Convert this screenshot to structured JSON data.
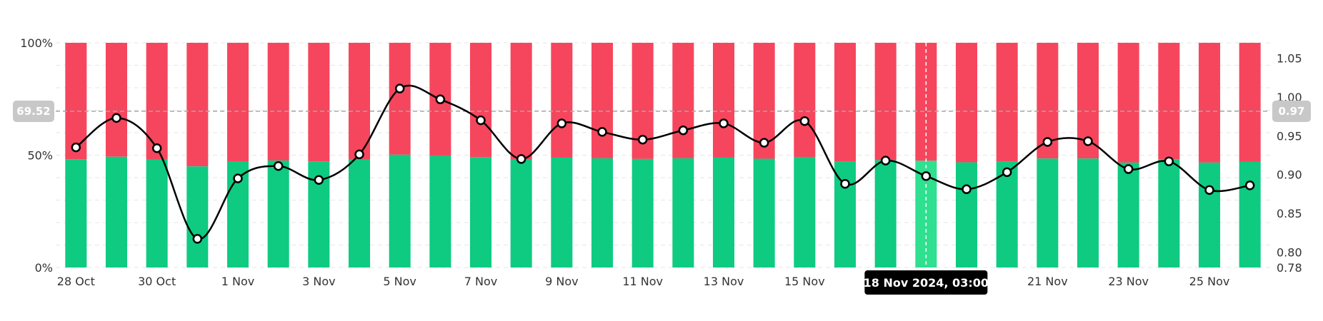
{
  "chart_data": {
    "type": "bar",
    "stacked_percent": true,
    "categories": [
      "28 Oct",
      "29 Oct",
      "30 Oct",
      "31 Oct",
      "1 Nov",
      "2 Nov",
      "3 Nov",
      "4 Nov",
      "5 Nov",
      "6 Nov",
      "7 Nov",
      "8 Nov",
      "9 Nov",
      "10 Nov",
      "11 Nov",
      "12 Nov",
      "13 Nov",
      "14 Nov",
      "15 Nov",
      "16 Nov",
      "17 Nov",
      "18 Nov",
      "19 Nov",
      "20 Nov",
      "21 Nov",
      "22 Nov",
      "23 Nov",
      "24 Nov",
      "25 Nov",
      "26 Nov"
    ],
    "x_tick_labels": [
      "28 Oct",
      "30 Oct",
      "1 Nov",
      "3 Nov",
      "5 Nov",
      "7 Nov",
      "9 Nov",
      "11 Nov",
      "13 Nov",
      "15 Nov",
      "21 Nov",
      "23 Nov",
      "25 Nov"
    ],
    "series": [
      {
        "color": "#0ecb81",
        "values": [
          48.2,
          49.3,
          48.1,
          45.0,
          47.3,
          47.6,
          47.2,
          48.1,
          50.2,
          49.7,
          49.1,
          48.1,
          48.9,
          48.6,
          48.3,
          48.6,
          48.9,
          48.4,
          49.2,
          47.1,
          47.8,
          47.5,
          46.8,
          47.1,
          48.5,
          48.5,
          46.7,
          48.2,
          46.7,
          47.0
        ]
      },
      {
        "color": "#f6465d",
        "values": [
          51.8,
          50.7,
          51.9,
          55.0,
          52.7,
          52.4,
          52.8,
          51.9,
          49.8,
          50.3,
          50.9,
          51.9,
          51.1,
          51.4,
          51.7,
          51.4,
          51.1,
          51.6,
          50.8,
          52.9,
          52.2,
          52.5,
          53.2,
          52.9,
          51.5,
          51.5,
          53.3,
          51.8,
          53.3,
          53.0
        ]
      }
    ],
    "line_series": {
      "values": [
        0.935,
        0.973,
        0.934,
        0.817,
        0.895,
        0.911,
        0.893,
        0.926,
        1.011,
        0.997,
        0.97,
        0.92,
        0.966,
        0.955,
        0.945,
        0.957,
        0.966,
        0.941,
        0.969,
        0.888,
        0.918,
        0.898,
        0.881,
        0.903,
        0.942,
        0.943,
        0.907,
        0.917,
        0.88,
        0.886
      ]
    },
    "left_axis": {
      "ylim": [
        0,
        100
      ],
      "tick_labels": [
        "100%",
        "50%",
        "0%"
      ],
      "current_label": "69.52",
      "current_value": 69.52
    },
    "right_axis": {
      "ylim": [
        0.78,
        1.07
      ],
      "tick_labels": [
        "1.05",
        "1.00",
        "0.95",
        "0.90",
        "0.85",
        "0.80",
        "0.78"
      ],
      "tick_values": [
        1.05,
        1.0,
        0.95,
        0.9,
        0.85,
        0.8,
        0.78
      ],
      "current_label": "0.97",
      "current_value": 0.97
    },
    "highlight_index": 21,
    "highlight_color": "#2ee08f",
    "tooltip_label": "18 Nov 2024, 03:00",
    "grid": true,
    "legend": "none",
    "colors": {
      "line": "#000000",
      "badge": "#c8c8c8",
      "tooltip_bg": "#000000",
      "grid": "#e6e6e6"
    }
  }
}
